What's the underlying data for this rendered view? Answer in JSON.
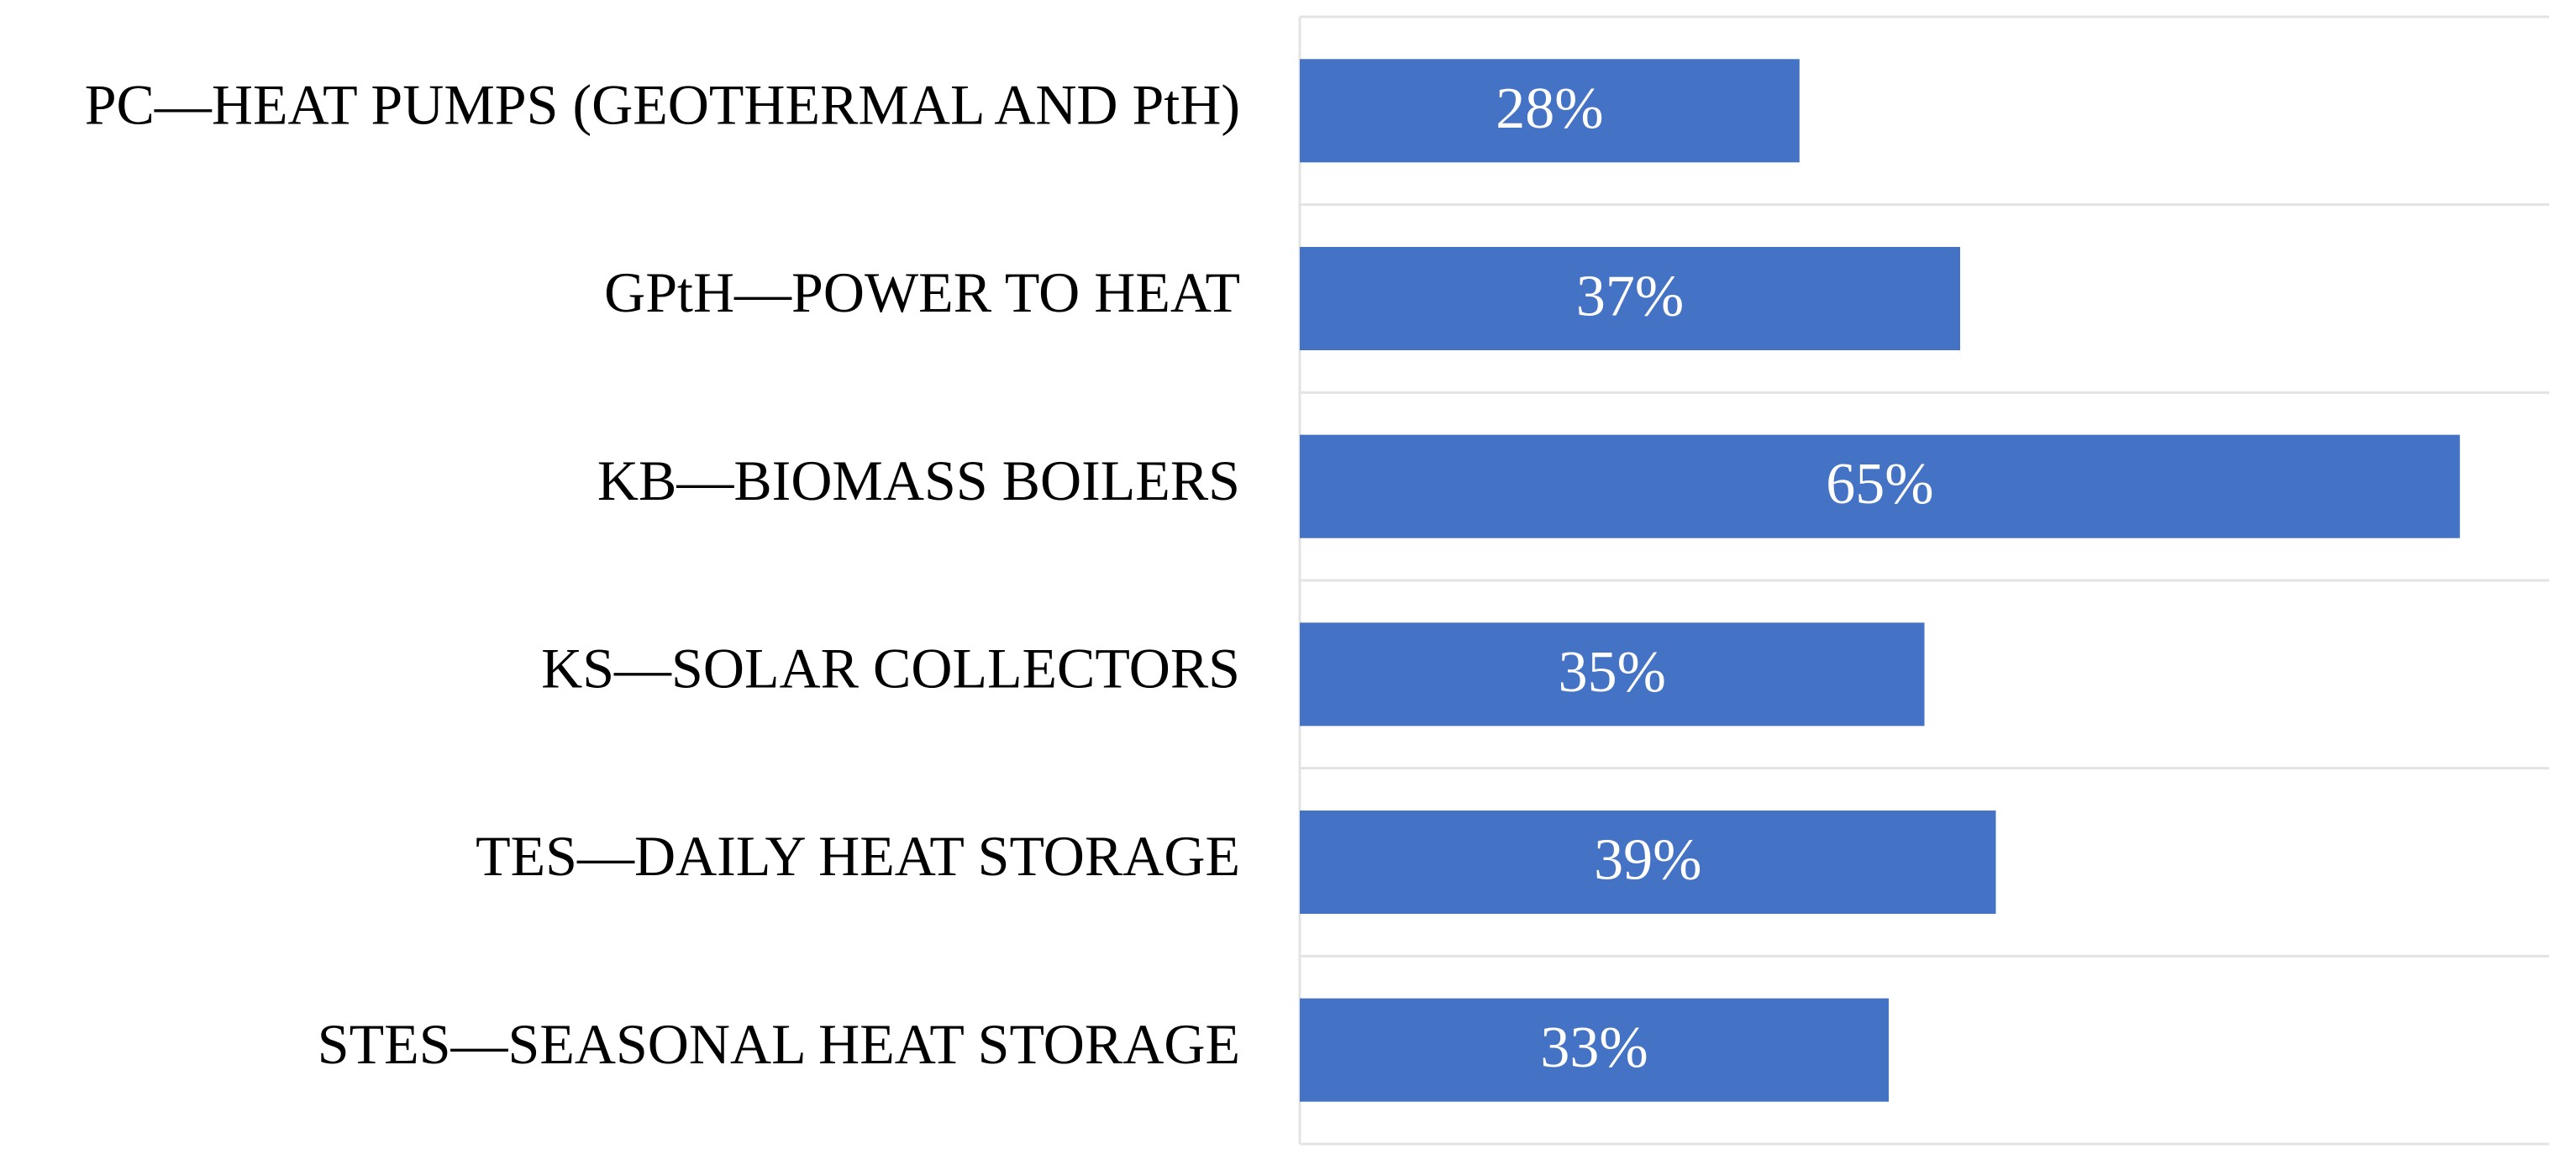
{
  "chart_data": {
    "type": "bar",
    "orientation": "horizontal",
    "categories": [
      "PC—HEAT PUMPS (GEOTHERMAL AND PtH)",
      "GPtH—POWER TO HEAT",
      "KB—BIOMASS BOILERS",
      "KS—SOLAR COLLECTORS",
      "TES—DAILY HEAT STORAGE",
      "STES—SEASONAL HEAT STORAGE"
    ],
    "values": [
      28,
      37,
      65,
      35,
      39,
      33
    ],
    "value_labels": [
      "28%",
      "37%",
      "65%",
      "35%",
      "39%",
      "33%"
    ],
    "color": "#4472c4",
    "xlim": [
      0,
      70
    ]
  }
}
